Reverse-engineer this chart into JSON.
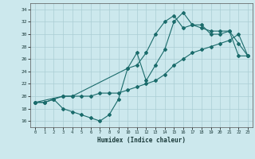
{
  "xlabel": "Humidex (Indice chaleur)",
  "bg_color": "#cce8ed",
  "grid_color": "#aacdd4",
  "line_color": "#1a6b6b",
  "xlim": [
    -0.5,
    23.5
  ],
  "ylim": [
    15,
    35
  ],
  "xticks": [
    0,
    1,
    2,
    3,
    4,
    5,
    6,
    7,
    8,
    9,
    10,
    11,
    12,
    13,
    14,
    15,
    16,
    17,
    18,
    19,
    20,
    21,
    22,
    23
  ],
  "yticks": [
    16,
    18,
    20,
    22,
    24,
    26,
    28,
    30,
    32,
    34
  ],
  "line1_x": [
    0,
    1,
    2,
    3,
    4,
    5,
    6,
    7,
    8,
    9,
    10,
    11,
    12,
    13,
    14,
    15,
    16,
    17,
    18,
    19,
    20,
    21,
    22,
    23
  ],
  "line1_y": [
    19,
    19,
    19.5,
    18,
    17.5,
    17,
    16.5,
    16,
    17,
    19.5,
    24.5,
    27,
    22.5,
    25,
    27.5,
    32,
    33.5,
    31.5,
    31,
    30.5,
    30.5,
    30.5,
    28.5,
    26.5
  ],
  "line2_x": [
    0,
    1,
    2,
    3,
    4,
    5,
    6,
    7,
    8,
    9,
    10,
    11,
    12,
    13,
    14,
    15,
    16,
    17,
    18,
    19,
    20,
    21,
    22,
    23
  ],
  "line2_y": [
    19,
    19,
    19.5,
    20,
    20,
    20,
    20,
    20.5,
    20.5,
    20.5,
    21,
    21.5,
    22,
    22.5,
    23.5,
    25,
    26,
    27,
    27.5,
    28,
    28.5,
    29,
    30,
    26.5
  ],
  "line3_x": [
    0,
    3,
    4,
    10,
    11,
    12,
    13,
    14,
    15,
    16,
    17,
    18,
    19,
    20,
    21,
    22,
    23
  ],
  "line3_y": [
    19,
    20,
    20,
    24.5,
    25,
    27,
    30,
    32,
    33,
    31,
    31.5,
    31.5,
    30,
    30,
    30.5,
    26.5,
    26.5
  ]
}
